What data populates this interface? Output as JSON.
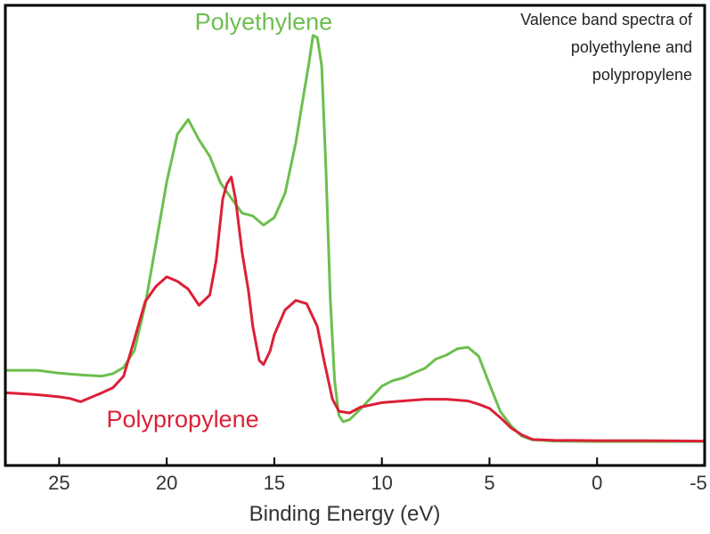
{
  "chart_data": {
    "type": "line",
    "title": "Valence band spectra of polyethylene and polypropylene",
    "title_lines": [
      "Valence band spectra of",
      "polyethylene and",
      "polypropylene"
    ],
    "xlabel": "Binding Energy (eV)",
    "ylabel": "",
    "xlim": [
      27.5,
      -5
    ],
    "x_reversed": true,
    "ylim": [
      0,
      100
    ],
    "y_ticks_shown": false,
    "grid": false,
    "xticks": [
      25,
      20,
      15,
      10,
      5,
      0,
      -5
    ],
    "xtick_labels": [
      "25",
      "20",
      "15",
      "10",
      "5",
      "0",
      "-5"
    ],
    "series": [
      {
        "name": "Polyethylene",
        "color": "#6cbf4e",
        "x": [
          27.5,
          26,
          25,
          24,
          23,
          22.5,
          22,
          21.5,
          21,
          20.5,
          20,
          19.5,
          19,
          18.5,
          18,
          17.5,
          17,
          16.5,
          16,
          15.5,
          15,
          14.5,
          14,
          13.7,
          13.4,
          13.2,
          13,
          12.8,
          12.6,
          12.4,
          12.2,
          12,
          11.8,
          11.5,
          11,
          10.5,
          10,
          9.5,
          9,
          8.5,
          8,
          7.5,
          7,
          6.5,
          6,
          5.5,
          5,
          4.5,
          4,
          3.5,
          3,
          2.5,
          2,
          0,
          -2,
          -5
        ],
        "y": [
          17.4,
          17.4,
          16.7,
          16.3,
          16.0,
          16.6,
          18.1,
          22.2,
          33.3,
          48.0,
          63.0,
          74.5,
          78.0,
          73.1,
          69.1,
          62.7,
          59.0,
          55.4,
          54.7,
          52.5,
          54.3,
          60.2,
          72.5,
          82.0,
          91.4,
          98.3,
          97.8,
          91.0,
          66.0,
          35.0,
          15.0,
          6.5,
          5.0,
          5.5,
          8.0,
          10.8,
          13.6,
          14.9,
          15.6,
          16.8,
          17.9,
          20.1,
          21.1,
          22.6,
          23.0,
          20.8,
          14.0,
          7.5,
          4.0,
          1.5,
          0.6,
          0.5,
          0.3,
          0.2,
          0.2,
          0.2
        ]
      },
      {
        "name": "Polypropylene",
        "color": "#dc2037",
        "x": [
          27.5,
          26,
          25,
          24.5,
          24,
          23,
          22.5,
          22,
          21.5,
          21,
          20.5,
          20,
          19.5,
          19,
          18.5,
          18,
          17.7,
          17.4,
          17.2,
          17,
          16.8,
          16.5,
          16.2,
          16,
          15.7,
          15.5,
          15.2,
          15,
          14.5,
          14,
          13.5,
          13,
          12.7,
          12.3,
          12,
          11.5,
          11,
          10,
          9,
          8,
          7,
          6,
          5.5,
          5,
          4.5,
          4,
          3.5,
          3,
          2,
          0,
          -2,
          -5
        ],
        "y": [
          12.0,
          11.5,
          11.0,
          10.6,
          9.8,
          12.0,
          13.2,
          16.0,
          24.9,
          34.0,
          37.7,
          40.0,
          38.9,
          37.0,
          33.1,
          35.6,
          44.0,
          58.8,
          62.5,
          64.1,
          58.8,
          46.0,
          36.6,
          28.0,
          19.8,
          18.8,
          22.0,
          26.0,
          32.0,
          34.3,
          33.5,
          28.0,
          20.0,
          10.5,
          7.5,
          7.1,
          8.5,
          9.6,
          10.0,
          10.4,
          10.4,
          10.0,
          9.2,
          8.2,
          6.0,
          3.5,
          1.8,
          0.7,
          0.5,
          0.4,
          0.4,
          0.3
        ]
      }
    ],
    "annotations": [
      {
        "text": "Polyethylene",
        "color": "#6cbf4e",
        "x": 18.7,
        "y": 99.7
      },
      {
        "text": "Polypropylene",
        "color": "#dc2037",
        "x": 22.8,
        "y": 3.7
      }
    ]
  }
}
